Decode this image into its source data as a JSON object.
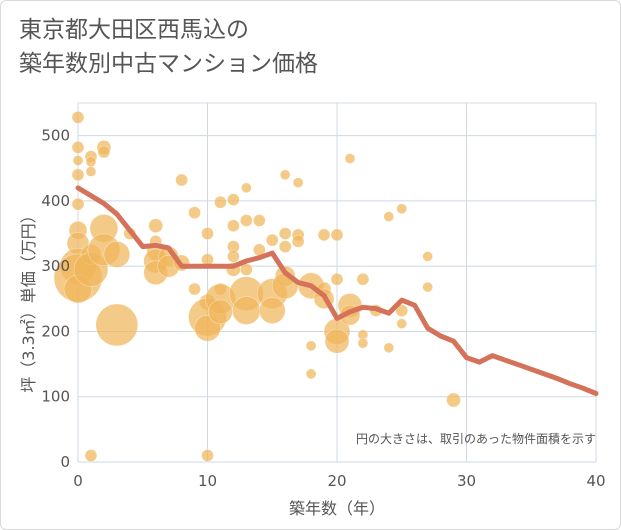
{
  "title_lines": [
    "東京都大田区西馬込の",
    "築年数別中古マンション価格"
  ],
  "chart_data": {
    "type": "scatter",
    "title": "東京都大田区西馬込の築年数別中古マンション価格",
    "xlabel": "築年数（年）",
    "ylabel": "坪（3.3㎡）単価（万円）",
    "xlim": [
      0,
      40
    ],
    "ylim": [
      0,
      550
    ],
    "xticks": [
      0,
      10,
      20,
      30,
      40
    ],
    "yticks": [
      0,
      100,
      200,
      300,
      400,
      500
    ],
    "grid": true,
    "note": "円の大きさは、取引のあった物件面積を示す",
    "colors": {
      "bubble": "#f0b55a",
      "line": "#d4725a"
    },
    "scatter_points": [
      {
        "x": 0,
        "y": 528,
        "s": 6
      },
      {
        "x": 0,
        "y": 482,
        "s": 6
      },
      {
        "x": 0,
        "y": 462,
        "s": 5
      },
      {
        "x": 0,
        "y": 440,
        "s": 6
      },
      {
        "x": 0,
        "y": 395,
        "s": 6
      },
      {
        "x": 0,
        "y": 355,
        "s": 9
      },
      {
        "x": 0,
        "y": 335,
        "s": 11
      },
      {
        "x": 0,
        "y": 300,
        "s": 18
      },
      {
        "x": 0,
        "y": 282,
        "s": 24
      },
      {
        "x": 0,
        "y": 265,
        "s": 14
      },
      {
        "x": 1,
        "y": 468,
        "s": 6
      },
      {
        "x": 1,
        "y": 460,
        "s": 5
      },
      {
        "x": 1,
        "y": 445,
        "s": 5
      },
      {
        "x": 1,
        "y": 318,
        "s": 10
      },
      {
        "x": 1,
        "y": 295,
        "s": 17
      },
      {
        "x": 1,
        "y": 10,
        "s": 6
      },
      {
        "x": 2,
        "y": 482,
        "s": 7
      },
      {
        "x": 2,
        "y": 475,
        "s": 6
      },
      {
        "x": 2,
        "y": 358,
        "s": 14
      },
      {
        "x": 2,
        "y": 325,
        "s": 16
      },
      {
        "x": 3,
        "y": 318,
        "s": 13
      },
      {
        "x": 3,
        "y": 210,
        "s": 21
      },
      {
        "x": 4,
        "y": 350,
        "s": 6
      },
      {
        "x": 6,
        "y": 362,
        "s": 7
      },
      {
        "x": 6,
        "y": 338,
        "s": 6
      },
      {
        "x": 6,
        "y": 322,
        "s": 9
      },
      {
        "x": 6,
        "y": 308,
        "s": 12
      },
      {
        "x": 6,
        "y": 290,
        "s": 12
      },
      {
        "x": 7,
        "y": 315,
        "s": 10
      },
      {
        "x": 7,
        "y": 300,
        "s": 11
      },
      {
        "x": 8,
        "y": 432,
        "s": 6
      },
      {
        "x": 8,
        "y": 305,
        "s": 8
      },
      {
        "x": 9,
        "y": 382,
        "s": 6
      },
      {
        "x": 9,
        "y": 265,
        "s": 6
      },
      {
        "x": 10,
        "y": 350,
        "s": 6
      },
      {
        "x": 10,
        "y": 310,
        "s": 6
      },
      {
        "x": 10,
        "y": 245,
        "s": 8
      },
      {
        "x": 10,
        "y": 222,
        "s": 19
      },
      {
        "x": 10,
        "y": 205,
        "s": 13
      },
      {
        "x": 10,
        "y": 10,
        "s": 6
      },
      {
        "x": 11,
        "y": 398,
        "s": 6
      },
      {
        "x": 11,
        "y": 265,
        "s": 6
      },
      {
        "x": 11,
        "y": 250,
        "s": 15
      },
      {
        "x": 11,
        "y": 230,
        "s": 12
      },
      {
        "x": 12,
        "y": 402,
        "s": 6
      },
      {
        "x": 12,
        "y": 362,
        "s": 6
      },
      {
        "x": 12,
        "y": 330,
        "s": 6
      },
      {
        "x": 12,
        "y": 315,
        "s": 6
      },
      {
        "x": 12,
        "y": 295,
        "s": 7
      },
      {
        "x": 13,
        "y": 420,
        "s": 5
      },
      {
        "x": 13,
        "y": 370,
        "s": 6
      },
      {
        "x": 13,
        "y": 295,
        "s": 6
      },
      {
        "x": 13,
        "y": 258,
        "s": 17
      },
      {
        "x": 13,
        "y": 232,
        "s": 14
      },
      {
        "x": 14,
        "y": 370,
        "s": 6
      },
      {
        "x": 14,
        "y": 325,
        "s": 6
      },
      {
        "x": 15,
        "y": 340,
        "s": 6
      },
      {
        "x": 15,
        "y": 258,
        "s": 15
      },
      {
        "x": 15,
        "y": 232,
        "s": 13
      },
      {
        "x": 16,
        "y": 440,
        "s": 5
      },
      {
        "x": 16,
        "y": 350,
        "s": 6
      },
      {
        "x": 16,
        "y": 330,
        "s": 6
      },
      {
        "x": 16,
        "y": 285,
        "s": 10
      },
      {
        "x": 16,
        "y": 270,
        "s": 13
      },
      {
        "x": 17,
        "y": 428,
        "s": 5
      },
      {
        "x": 17,
        "y": 348,
        "s": 6
      },
      {
        "x": 17,
        "y": 338,
        "s": 6
      },
      {
        "x": 18,
        "y": 270,
        "s": 13
      },
      {
        "x": 18,
        "y": 178,
        "s": 5
      },
      {
        "x": 18,
        "y": 135,
        "s": 5
      },
      {
        "x": 19,
        "y": 348,
        "s": 6
      },
      {
        "x": 19,
        "y": 265,
        "s": 7
      },
      {
        "x": 19,
        "y": 250,
        "s": 10
      },
      {
        "x": 20,
        "y": 348,
        "s": 6
      },
      {
        "x": 20,
        "y": 280,
        "s": 6
      },
      {
        "x": 20,
        "y": 200,
        "s": 13
      },
      {
        "x": 20,
        "y": 185,
        "s": 12
      },
      {
        "x": 21,
        "y": 465,
        "s": 5
      },
      {
        "x": 21,
        "y": 240,
        "s": 12
      },
      {
        "x": 21,
        "y": 225,
        "s": 10
      },
      {
        "x": 22,
        "y": 280,
        "s": 6
      },
      {
        "x": 22,
        "y": 195,
        "s": 5
      },
      {
        "x": 22,
        "y": 182,
        "s": 5
      },
      {
        "x": 23,
        "y": 232,
        "s": 6
      },
      {
        "x": 24,
        "y": 376,
        "s": 5
      },
      {
        "x": 24,
        "y": 175,
        "s": 5
      },
      {
        "x": 25,
        "y": 388,
        "s": 5
      },
      {
        "x": 25,
        "y": 232,
        "s": 6
      },
      {
        "x": 25,
        "y": 212,
        "s": 5
      },
      {
        "x": 27,
        "y": 315,
        "s": 5
      },
      {
        "x": 27,
        "y": 268,
        "s": 5
      },
      {
        "x": 29,
        "y": 95,
        "s": 7
      }
    ],
    "series": [
      {
        "x": [
          0,
          1,
          2,
          3,
          4,
          5,
          6,
          7,
          8,
          9,
          10,
          11,
          12,
          13,
          14,
          15,
          16,
          17,
          18,
          19,
          20,
          21,
          22,
          23,
          24,
          25,
          26,
          27,
          28,
          29,
          30,
          31,
          32,
          33,
          34,
          35,
          36,
          37,
          38,
          39,
          40
        ],
        "values": [
          420,
          408,
          396,
          380,
          355,
          330,
          332,
          328,
          300,
          300,
          300,
          300,
          300,
          308,
          313,
          320,
          290,
          275,
          270,
          255,
          220,
          230,
          237,
          235,
          228,
          248,
          240,
          205,
          193,
          185,
          160,
          153,
          163,
          156,
          149,
          142,
          135,
          128,
          120,
          113,
          105
        ]
      }
    ]
  }
}
